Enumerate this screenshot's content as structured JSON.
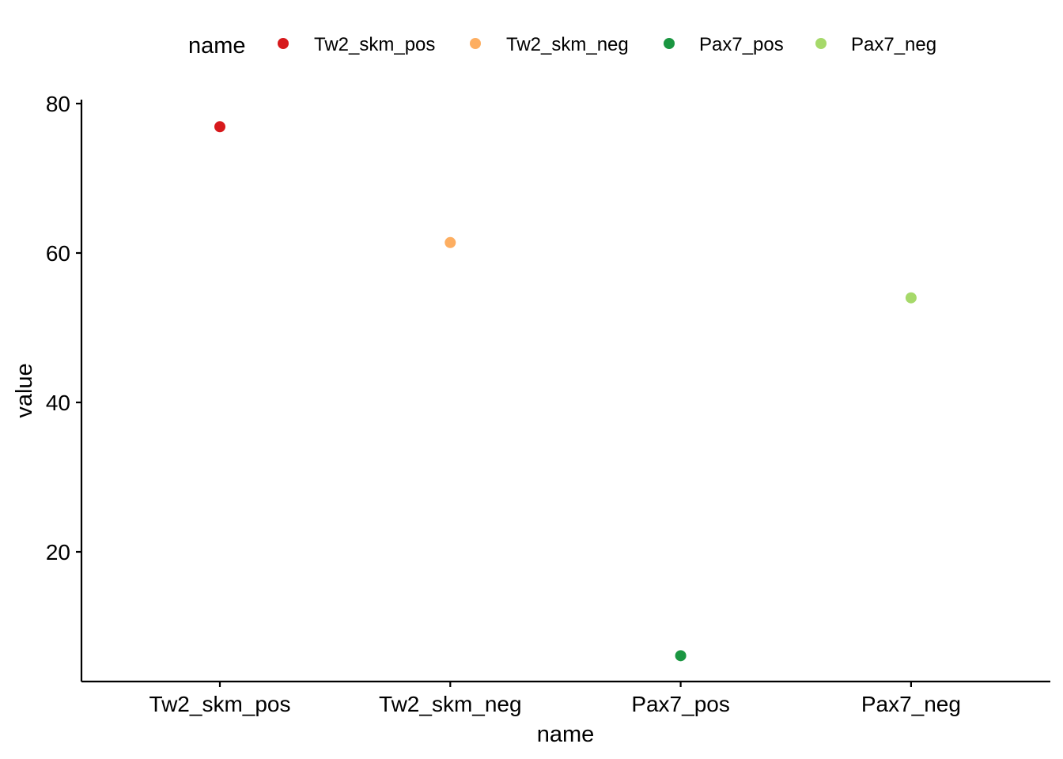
{
  "chart_data": {
    "type": "scatter",
    "categories": [
      "Tw2_skm_pos",
      "Tw2_skm_neg",
      "Pax7_pos",
      "Pax7_neg"
    ],
    "values": [
      76.9,
      61.4,
      6.1,
      54.0
    ],
    "colors": [
      "#d7191c",
      "#fdae61",
      "#1a9641",
      "#a6d96a"
    ],
    "xlabel": "name",
    "ylabel": "value",
    "yticks": [
      20,
      40,
      60,
      80
    ],
    "ylim": [
      2.5,
      80
    ],
    "legend": {
      "title": "name",
      "position": "top",
      "entries": [
        "Tw2_skm_pos",
        "Tw2_skm_neg",
        "Pax7_pos",
        "Pax7_neg"
      ]
    }
  }
}
